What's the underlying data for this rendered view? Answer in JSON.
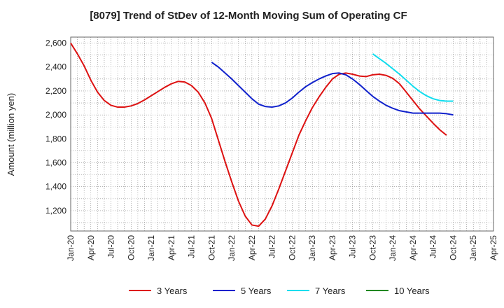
{
  "chart_data": {
    "type": "line",
    "title": "[8079]  Trend of StDev of 12-Month Moving Sum of Operating CF",
    "xlabel": "",
    "ylabel": "Amount (million yen)",
    "ylim": [
      1030,
      2650
    ],
    "y_ticks": [
      1200,
      1400,
      1600,
      1800,
      2000,
      2200,
      2400,
      2600
    ],
    "y_tick_labels": [
      "1,200",
      "1,400",
      "1,600",
      "1,800",
      "2,000",
      "2,200",
      "2,400",
      "2,600"
    ],
    "x_tick_labels": [
      "Jan-20",
      "Apr-20",
      "Jul-20",
      "Oct-20",
      "Jan-21",
      "Apr-21",
      "Jul-21",
      "Oct-21",
      "Jan-22",
      "Apr-22",
      "Jul-22",
      "Oct-22",
      "Jan-23",
      "Apr-23",
      "Jul-23",
      "Oct-23",
      "Jan-24",
      "Apr-24",
      "Jul-24",
      "Oct-24",
      "Jan-25",
      "Apr-25"
    ],
    "grid": true,
    "legend_position": "bottom",
    "series": [
      {
        "name": "3 Years",
        "color": "#dd1111",
        "start_index": 0,
        "values": [
          2600,
          2510,
          2410,
          2290,
          2190,
          2120,
          2080,
          2065,
          2065,
          2075,
          2095,
          2125,
          2160,
          2195,
          2230,
          2260,
          2280,
          2275,
          2245,
          2190,
          2100,
          1970,
          1790,
          1610,
          1440,
          1280,
          1155,
          1080,
          1070,
          1130,
          1240,
          1380,
          1530,
          1680,
          1830,
          1950,
          2060,
          2150,
          2230,
          2300,
          2340,
          2350,
          2340,
          2325,
          2320,
          2335,
          2340,
          2330,
          2305,
          2260,
          2190,
          2120,
          2050,
          1990,
          1930,
          1875,
          1830
        ]
      },
      {
        "name": "5 Years",
        "color": "#1122cc",
        "start_index": 21,
        "values": [
          2440,
          2400,
          2350,
          2300,
          2245,
          2190,
          2135,
          2090,
          2070,
          2065,
          2075,
          2100,
          2140,
          2190,
          2235,
          2270,
          2300,
          2325,
          2345,
          2350,
          2335,
          2300,
          2255,
          2205,
          2155,
          2115,
          2080,
          2055,
          2035,
          2025,
          2015,
          2015,
          2015,
          2015,
          2015,
          2010,
          2000
        ]
      },
      {
        "name": "7 Years",
        "color": "#11ddee",
        "start_index": 45,
        "values": [
          2510,
          2470,
          2430,
          2385,
          2340,
          2290,
          2240,
          2195,
          2160,
          2135,
          2120,
          2115,
          2115
        ]
      },
      {
        "name": "10 Years",
        "color": "#228822",
        "start_index": 0,
        "values": []
      }
    ]
  }
}
